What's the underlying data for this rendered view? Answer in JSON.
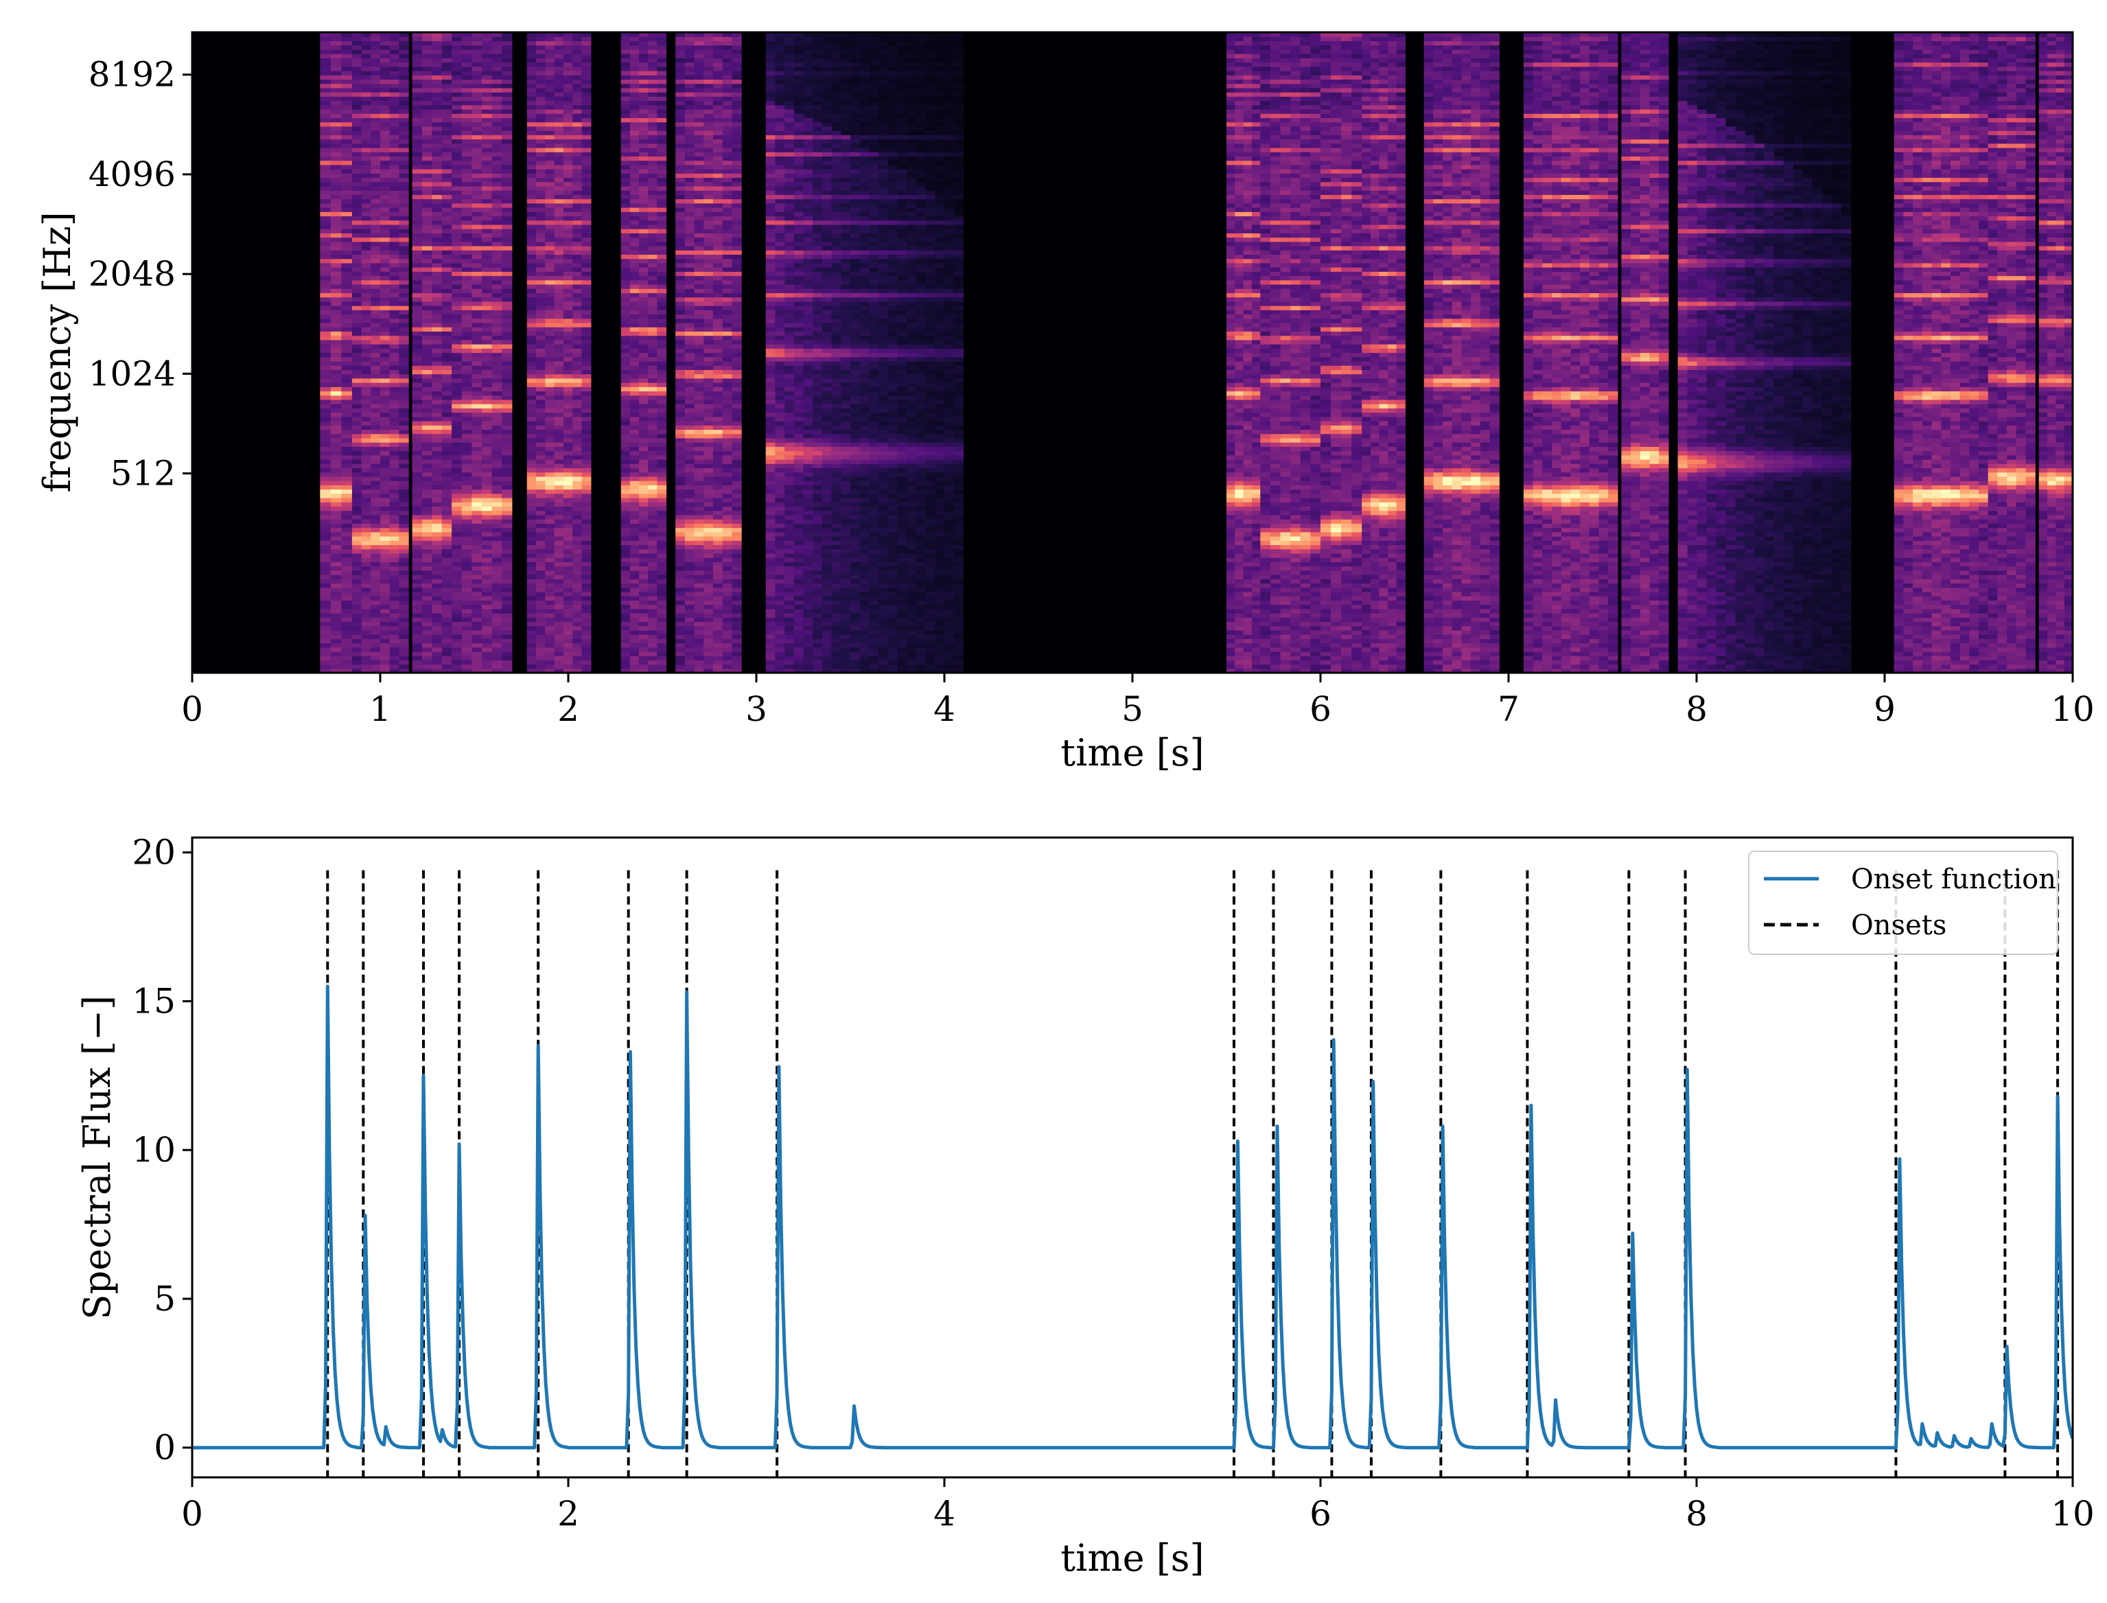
{
  "chart_data": [
    {
      "type": "heatmap",
      "title": "",
      "xlabel": "time [s]",
      "ylabel": "frequency [Hz]",
      "xlim": [
        0,
        10
      ],
      "x_ticks": [
        0,
        1,
        2,
        3,
        4,
        5,
        6,
        7,
        8,
        9,
        10
      ],
      "x_tick_labels": [
        "0",
        "1",
        "2",
        "3",
        "4",
        "5",
        "6",
        "7",
        "8",
        "9",
        "10"
      ],
      "y_scale": "log2",
      "ylim": [
        128,
        11000
      ],
      "y_ticks": [
        512,
        1024,
        2048,
        4096,
        8192
      ],
      "y_tick_labels": [
        "512",
        "1024",
        "2048",
        "4096",
        "8192"
      ],
      "colormap": "magma",
      "notes": [
        {
          "start": 0.68,
          "end": 0.85,
          "f0": 446,
          "level": 0.85
        },
        {
          "start": 0.85,
          "end": 1.15,
          "f0": 325,
          "level": 0.8
        },
        {
          "start": 1.17,
          "end": 1.38,
          "f0": 350,
          "level": 0.8
        },
        {
          "start": 1.38,
          "end": 1.7,
          "f0": 410,
          "level": 0.82
        },
        {
          "start": 1.78,
          "end": 2.12,
          "f0": 485,
          "level": 0.85
        },
        {
          "start": 2.28,
          "end": 2.52,
          "f0": 460,
          "level": 0.82
        },
        {
          "start": 2.57,
          "end": 2.92,
          "f0": 340,
          "level": 0.82
        },
        {
          "start": 3.05,
          "end": 4.1,
          "f0": 590,
          "level": 0.7,
          "decay": true
        },
        {
          "start": 5.5,
          "end": 5.68,
          "f0": 446,
          "level": 0.85
        },
        {
          "start": 5.68,
          "end": 6.0,
          "f0": 325,
          "level": 0.8
        },
        {
          "start": 6.0,
          "end": 6.22,
          "f0": 350,
          "level": 0.8
        },
        {
          "start": 6.22,
          "end": 6.45,
          "f0": 410,
          "level": 0.82
        },
        {
          "start": 6.55,
          "end": 6.95,
          "f0": 485,
          "level": 0.85
        },
        {
          "start": 7.08,
          "end": 7.58,
          "f0": 440,
          "level": 0.85
        },
        {
          "start": 7.6,
          "end": 7.85,
          "f0": 575,
          "level": 0.82
        },
        {
          "start": 7.9,
          "end": 8.82,
          "f0": 555,
          "level": 0.75,
          "decay": true
        },
        {
          "start": 9.05,
          "end": 9.55,
          "f0": 440,
          "level": 0.85
        },
        {
          "start": 9.55,
          "end": 9.8,
          "f0": 500,
          "level": 0.8
        },
        {
          "start": 9.82,
          "end": 10.0,
          "f0": 490,
          "level": 0.8
        }
      ]
    },
    {
      "type": "line",
      "title": "",
      "xlabel": "time [s]",
      "ylabel": "Spectral Flux [−]",
      "xlim": [
        0,
        10
      ],
      "ylim": [
        -1,
        20.5
      ],
      "x_ticks": [
        0,
        2,
        4,
        6,
        8,
        10
      ],
      "x_tick_labels": [
        "0",
        "2",
        "4",
        "6",
        "8",
        "10"
      ],
      "y_ticks": [
        0,
        5,
        10,
        15,
        20
      ],
      "y_tick_labels": [
        "0",
        "5",
        "10",
        "15",
        "20"
      ],
      "legend_position": "top-right",
      "series": [
        {
          "name": "Onset function",
          "color": "#1f77b4",
          "peaks": [
            {
              "t": 0.72,
              "h": 15.5
            },
            {
              "t": 0.92,
              "h": 7.8
            },
            {
              "t": 1.03,
              "h": 0.7
            },
            {
              "t": 1.23,
              "h": 12.5
            },
            {
              "t": 1.33,
              "h": 0.6
            },
            {
              "t": 1.42,
              "h": 10.2
            },
            {
              "t": 1.84,
              "h": 13.5
            },
            {
              "t": 2.33,
              "h": 13.3
            },
            {
              "t": 2.63,
              "h": 15.3
            },
            {
              "t": 3.12,
              "h": 12.8
            },
            {
              "t": 3.52,
              "h": 1.4
            },
            {
              "t": 5.56,
              "h": 10.3
            },
            {
              "t": 5.77,
              "h": 10.8
            },
            {
              "t": 6.07,
              "h": 13.7
            },
            {
              "t": 6.28,
              "h": 12.3
            },
            {
              "t": 6.65,
              "h": 10.8
            },
            {
              "t": 7.12,
              "h": 11.5
            },
            {
              "t": 7.25,
              "h": 1.6
            },
            {
              "t": 7.66,
              "h": 7.2
            },
            {
              "t": 7.95,
              "h": 12.7
            },
            {
              "t": 9.08,
              "h": 9.7
            },
            {
              "t": 9.2,
              "h": 0.8
            },
            {
              "t": 9.28,
              "h": 0.5
            },
            {
              "t": 9.37,
              "h": 0.4
            },
            {
              "t": 9.46,
              "h": 0.3
            },
            {
              "t": 9.57,
              "h": 0.8
            },
            {
              "t": 9.65,
              "h": 3.4
            },
            {
              "t": 9.92,
              "h": 11.8
            }
          ]
        },
        {
          "name": "Onsets",
          "color": "#000000",
          "style": "dashed",
          "onset_times": [
            0.72,
            0.91,
            1.23,
            1.42,
            1.84,
            2.32,
            2.63,
            3.11,
            5.54,
            5.75,
            6.06,
            6.27,
            6.64,
            7.1,
            7.64,
            7.94,
            9.06,
            9.64,
            9.92
          ],
          "line_top": 19.4
        }
      ]
    }
  ]
}
